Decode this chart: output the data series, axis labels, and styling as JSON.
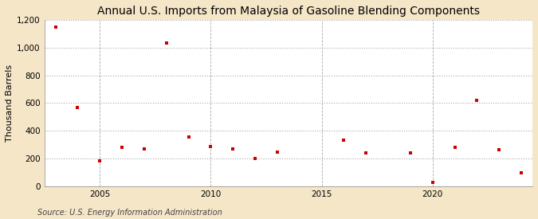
{
  "title": "Annual U.S. Imports from Malaysia of Gasoline Blending Components",
  "ylabel": "Thousand Barrels",
  "source": "Source: U.S. Energy Information Administration",
  "outer_bg": "#f5e6c8",
  "plot_bg": "#ffffff",
  "marker_color": "#cc0000",
  "years": [
    2003,
    2004,
    2005,
    2006,
    2007,
    2008,
    2009,
    2010,
    2011,
    2012,
    2013,
    2016,
    2017,
    2019,
    2020,
    2021,
    2022,
    2023,
    2024
  ],
  "values": [
    1150,
    570,
    185,
    280,
    270,
    1035,
    355,
    285,
    270,
    200,
    245,
    335,
    240,
    240,
    30,
    280,
    620,
    265,
    100
  ],
  "xlim": [
    2002.5,
    2024.5
  ],
  "ylim": [
    0,
    1200
  ],
  "yticks": [
    0,
    200,
    400,
    600,
    800,
    1000,
    1200
  ],
  "ytick_labels": [
    "0",
    "200",
    "400",
    "600",
    "800",
    "1,000",
    "1,200"
  ],
  "xticks": [
    2005,
    2010,
    2015,
    2020
  ],
  "grid_color": "#aaaaaa",
  "title_fontsize": 10,
  "label_fontsize": 8,
  "tick_fontsize": 7.5,
  "source_fontsize": 7
}
